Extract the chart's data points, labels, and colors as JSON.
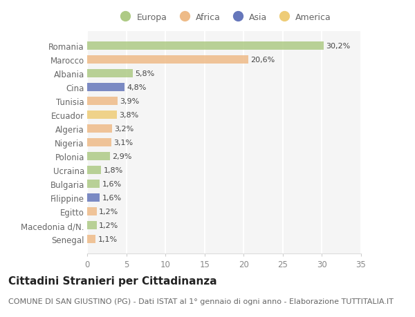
{
  "categories": [
    "Romania",
    "Marocco",
    "Albania",
    "Cina",
    "Tunisia",
    "Ecuador",
    "Algeria",
    "Nigeria",
    "Polonia",
    "Ucraina",
    "Bulgaria",
    "Filippine",
    "Egitto",
    "Macedonia d/N.",
    "Senegal"
  ],
  "values": [
    30.2,
    20.6,
    5.8,
    4.8,
    3.9,
    3.8,
    3.2,
    3.1,
    2.9,
    1.8,
    1.6,
    1.6,
    1.2,
    1.2,
    1.1
  ],
  "labels": [
    "30,2%",
    "20,6%",
    "5,8%",
    "4,8%",
    "3,9%",
    "3,8%",
    "3,2%",
    "3,1%",
    "2,9%",
    "1,8%",
    "1,6%",
    "1,6%",
    "1,2%",
    "1,2%",
    "1,1%"
  ],
  "continents": [
    "Europa",
    "Africa",
    "Europa",
    "Asia",
    "Africa",
    "America",
    "Africa",
    "Africa",
    "Europa",
    "Europa",
    "Europa",
    "Asia",
    "Africa",
    "Europa",
    "Africa"
  ],
  "colors": {
    "Europa": "#aeca85",
    "Africa": "#eebb88",
    "Asia": "#6677bb",
    "America": "#eecc77"
  },
  "xlim": [
    0,
    35
  ],
  "xticks": [
    0,
    5,
    10,
    15,
    20,
    25,
    30,
    35
  ],
  "bg_color": "#ffffff",
  "plot_bg_color": "#f5f5f5",
  "grid_color": "#ffffff",
  "title": "Cittadini Stranieri per Cittadinanza",
  "subtitle": "COMUNE DI SAN GIUSTINO (PG) - Dati ISTAT al 1° gennaio di ogni anno - Elaborazione TUTTITALIA.IT",
  "title_fontsize": 11,
  "subtitle_fontsize": 8,
  "label_fontsize": 8,
  "tick_fontsize": 8.5,
  "legend_fontsize": 9,
  "bar_height": 0.6
}
